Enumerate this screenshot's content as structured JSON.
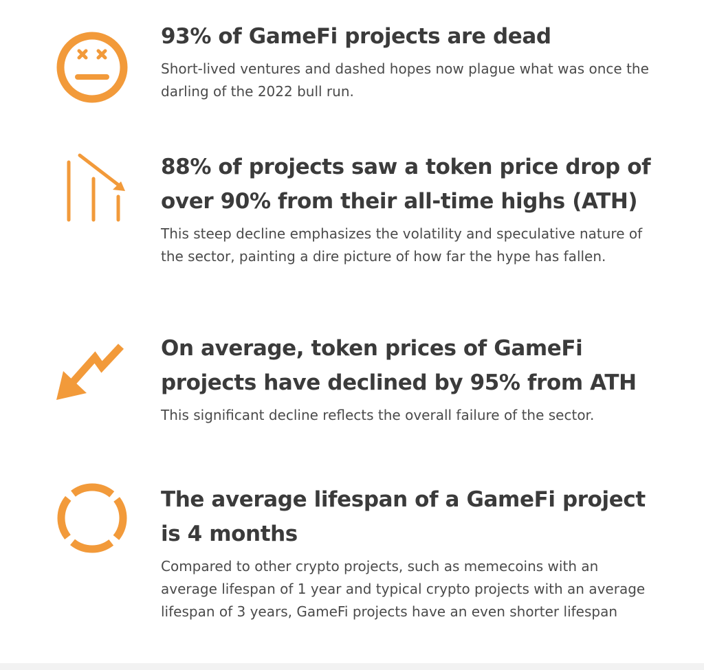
{
  "colors": {
    "accent": "#F29A3A",
    "heading": "#3B3B3B",
    "body_text": "#4A4A4A",
    "background": "#FFFFFF"
  },
  "items": [
    {
      "icon": "dead-face-icon",
      "heading": "93% of GameFi projects are dead",
      "description": "Short-lived ventures and dashed hopes now plague what was once the darling of the 2022 bull run."
    },
    {
      "icon": "declining-bars-icon",
      "heading": "88% of projects saw a token price drop of over 90% from their all-time highs (ATH)",
      "description": "This steep decline emphasizes the volatility and speculative nature of the sector, painting a dire picture of how far the hype has fallen."
    },
    {
      "icon": "zigzag-down-arrow-icon",
      "heading": "On average, token prices of GameFi projects have declined by 95% from ATH",
      "description": "This significant decline reflects the overall failure of the sector."
    },
    {
      "icon": "lifespan-ring-icon",
      "heading": "The average lifespan of a GameFi project is 4 months",
      "description": "Compared to other crypto projects, such as memecoins with an average lifespan of 1 year and typical crypto projects with an average lifespan of 3 years, GameFi projects have an even shorter lifespan"
    }
  ]
}
